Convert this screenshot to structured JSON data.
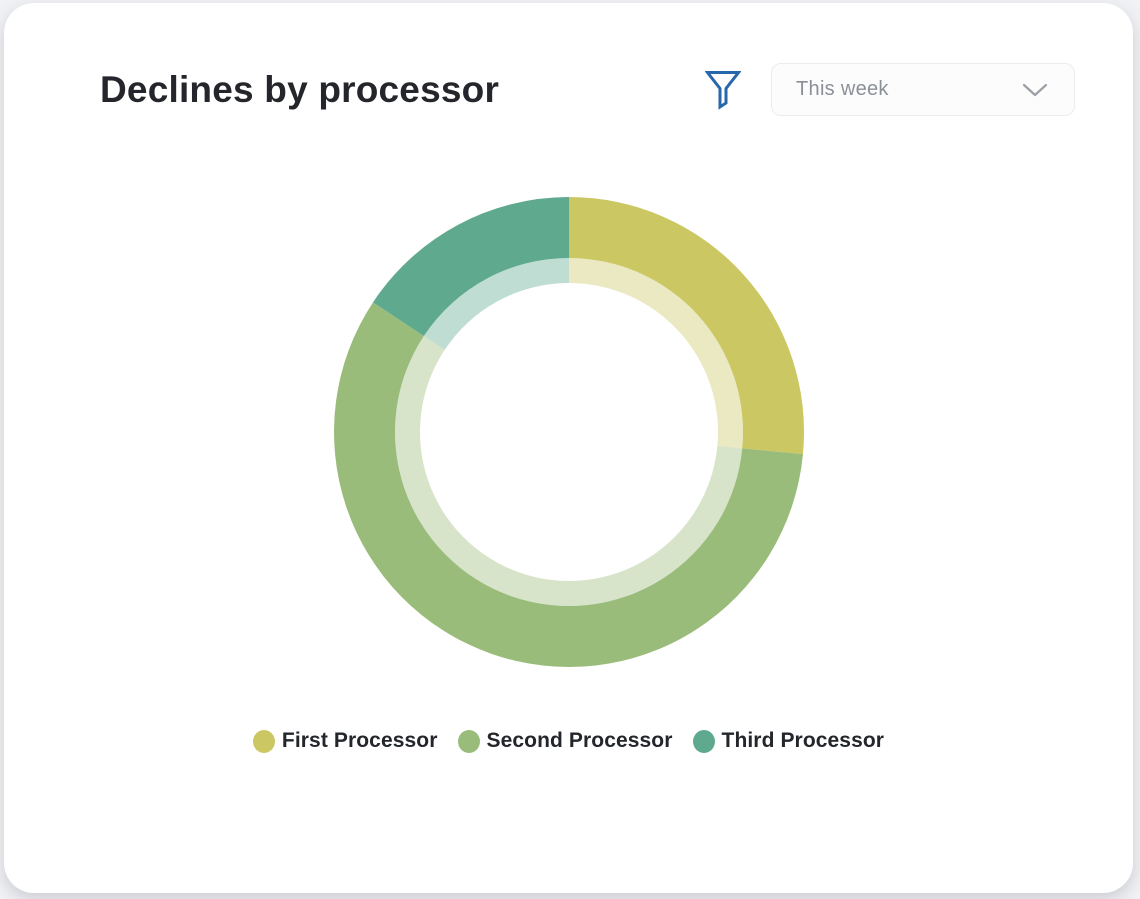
{
  "card": {
    "title": "Declines by processor"
  },
  "header": {
    "filter": {
      "icon": "funnel-icon",
      "icon_color": "#2767ac"
    },
    "period_select": {
      "value": "This week",
      "caret_icon": "chevron-down-icon"
    }
  },
  "chart_data": {
    "type": "pie",
    "variant": "donut-double-ring",
    "title": "Declines by processor",
    "categories": [
      "First Processor",
      "Second Processor",
      "Third Processor"
    ],
    "values_percent": [
      26.5,
      57.8,
      15.7
    ],
    "colors": [
      "#cbc763",
      "#9abc7a",
      "#5fa98e"
    ],
    "inner_ring_opacity": 0.4,
    "start_angle_deg": 0,
    "direction": "clockwise",
    "legend_position": "bottom",
    "data_labels": "none"
  }
}
